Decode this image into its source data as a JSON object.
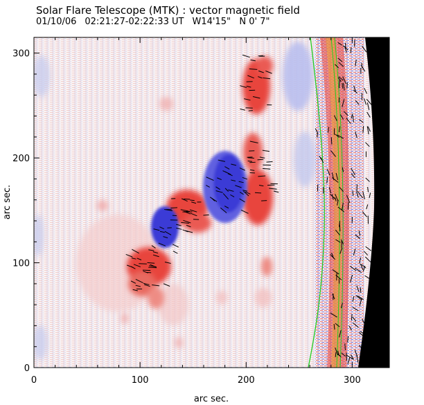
{
  "header": {
    "title": "Solar Flare Telescope (MTK) : vector magnetic field",
    "date": "01/10/06",
    "time_range": "02:21:27-02:22:33 UT",
    "position": "W14'15\"   N 0' 7\""
  },
  "plot": {
    "xlabel": "arc sec.",
    "ylabel": "arc sec.",
    "xlim": [
      0,
      335
    ],
    "ylim": [
      0,
      315
    ],
    "xticks": [
      0,
      100,
      200,
      300
    ],
    "yticks": [
      0,
      100,
      200,
      300
    ],
    "colors": {
      "positive": "#e8453c",
      "negative": "#3b3bd6",
      "limb_line": "#22cc22",
      "off_disk": "#000000",
      "vectors": "#000000"
    }
  }
}
